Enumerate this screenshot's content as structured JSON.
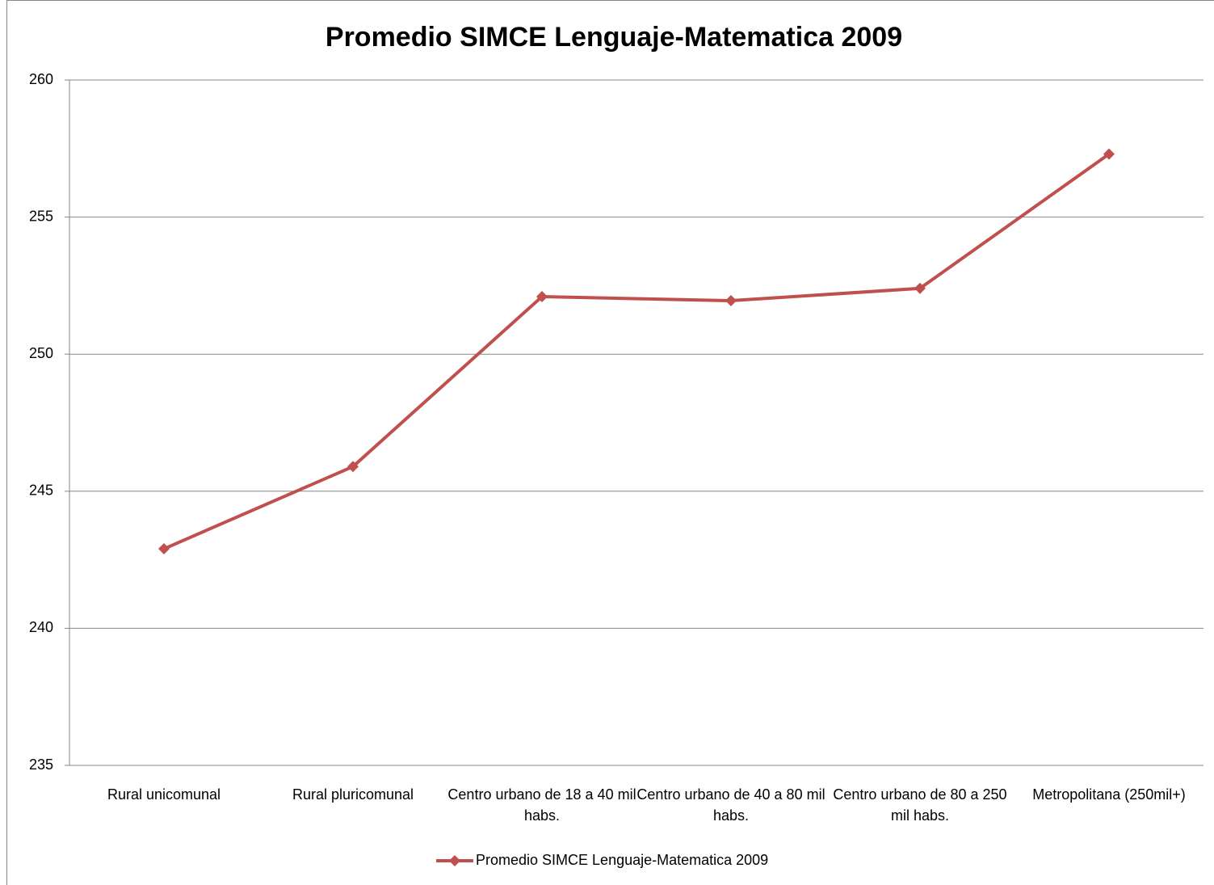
{
  "chart_data": {
    "type": "line",
    "title": "Promedio SIMCE Lenguaje-Matematica 2009",
    "categories": [
      "Rural unicomunal",
      "Rural pluricomunal",
      "Centro urbano de 18  a 40 mil habs.",
      "Centro urbano de 40 a 80 mil habs.",
      "Centro urbano de 80  a 250 mil habs.",
      "Metropolitana (250mil+)"
    ],
    "series": [
      {
        "name": "Promedio SIMCE Lenguaje-Matematica 2009",
        "color": "#c0504d",
        "values": [
          242.9,
          245.9,
          252.1,
          251.95,
          252.4,
          257.3
        ]
      }
    ],
    "ylim": [
      235,
      260
    ],
    "yticks": [
      235,
      240,
      245,
      250,
      255,
      260
    ],
    "grid": true,
    "legend": "bottom"
  }
}
